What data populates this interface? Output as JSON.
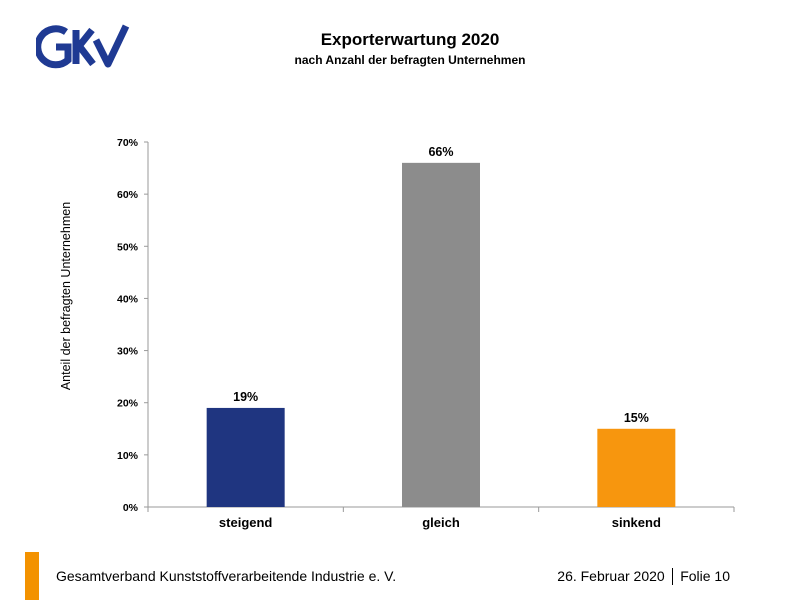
{
  "logo": {
    "text": "GKV",
    "color": "#1f3a93"
  },
  "header": {
    "title": "Exporterwartung 2020",
    "subtitle": "nach Anzahl der befragten Unternehmen"
  },
  "chart_data": {
    "type": "bar",
    "categories": [
      "steigend",
      "gleich",
      "sinkend"
    ],
    "values": [
      19,
      66,
      15
    ],
    "value_labels": [
      "19%",
      "66%",
      "15%"
    ],
    "colors": [
      "#1f3580",
      "#8c8c8c",
      "#f7960e"
    ],
    "ylabel": "Anteil der befragten Unternehmen",
    "xlabel": "",
    "ylim": [
      0,
      70
    ],
    "yticks": [
      0,
      10,
      20,
      30,
      40,
      50,
      60,
      70
    ],
    "ytick_labels": [
      "0%",
      "10%",
      "20%",
      "30%",
      "40%",
      "50%",
      "60%",
      "70%"
    ],
    "grid": false,
    "legend": "none"
  },
  "footer": {
    "organization": "Gesamtverband Kunststoffverarbeitende Industrie e. V.",
    "date": "26. Februar 2020",
    "slide": "Folie  10",
    "accent_color": "#f39200"
  }
}
